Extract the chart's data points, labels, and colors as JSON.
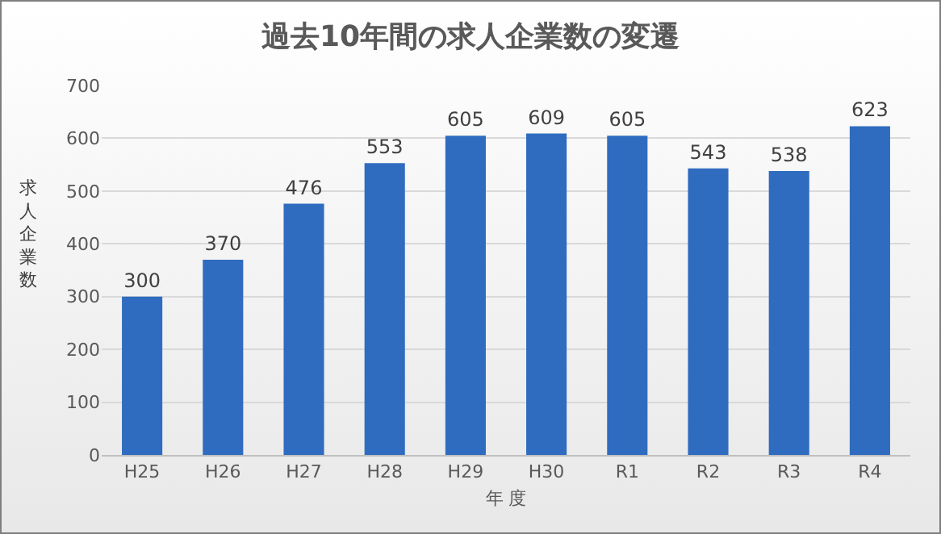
{
  "chart_data": {
    "type": "bar",
    "title": "過去10年間の求人企業数の変遷",
    "xlabel": "年 度",
    "ylabel": "求人企業数",
    "categories": [
      "H25",
      "H26",
      "H27",
      "H28",
      "H29",
      "H30",
      "R1",
      "R2",
      "R3",
      "R4"
    ],
    "values": [
      300,
      370,
      476,
      553,
      605,
      609,
      605,
      543,
      538,
      623
    ],
    "color": "#2f6cc0",
    "ylim": [
      0,
      700
    ],
    "yticks": [
      0,
      100,
      200,
      300,
      400,
      500,
      600,
      700
    ],
    "grid": "y",
    "data_labels": true
  }
}
